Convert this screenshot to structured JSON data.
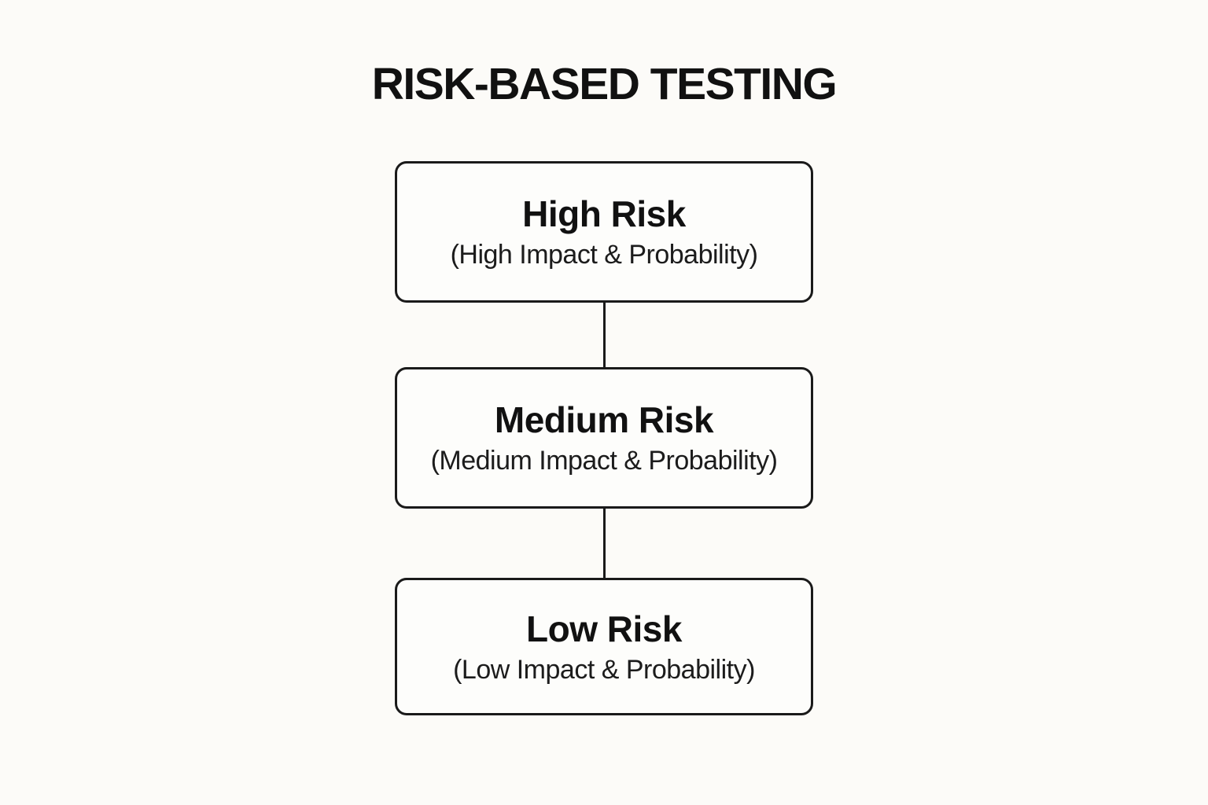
{
  "title": "RISK-BASED TESTING",
  "colors": {
    "background": "#fcfbf8",
    "box_fill": "#fdfdfb",
    "border": "#1a1a1a",
    "text": "#111111"
  },
  "nodes": [
    {
      "id": "high-risk",
      "label": "High Risk",
      "sublabel": "(High Impact & Probability)"
    },
    {
      "id": "medium-risk",
      "label": "Medium Risk",
      "sublabel": "(Medium Impact & Probability)"
    },
    {
      "id": "low-risk",
      "label": "Low Risk",
      "sublabel": "(Low Impact & Probability)"
    }
  ],
  "connections": [
    {
      "from": "high-risk",
      "to": "medium-risk"
    },
    {
      "from": "medium-risk",
      "to": "low-risk"
    }
  ]
}
